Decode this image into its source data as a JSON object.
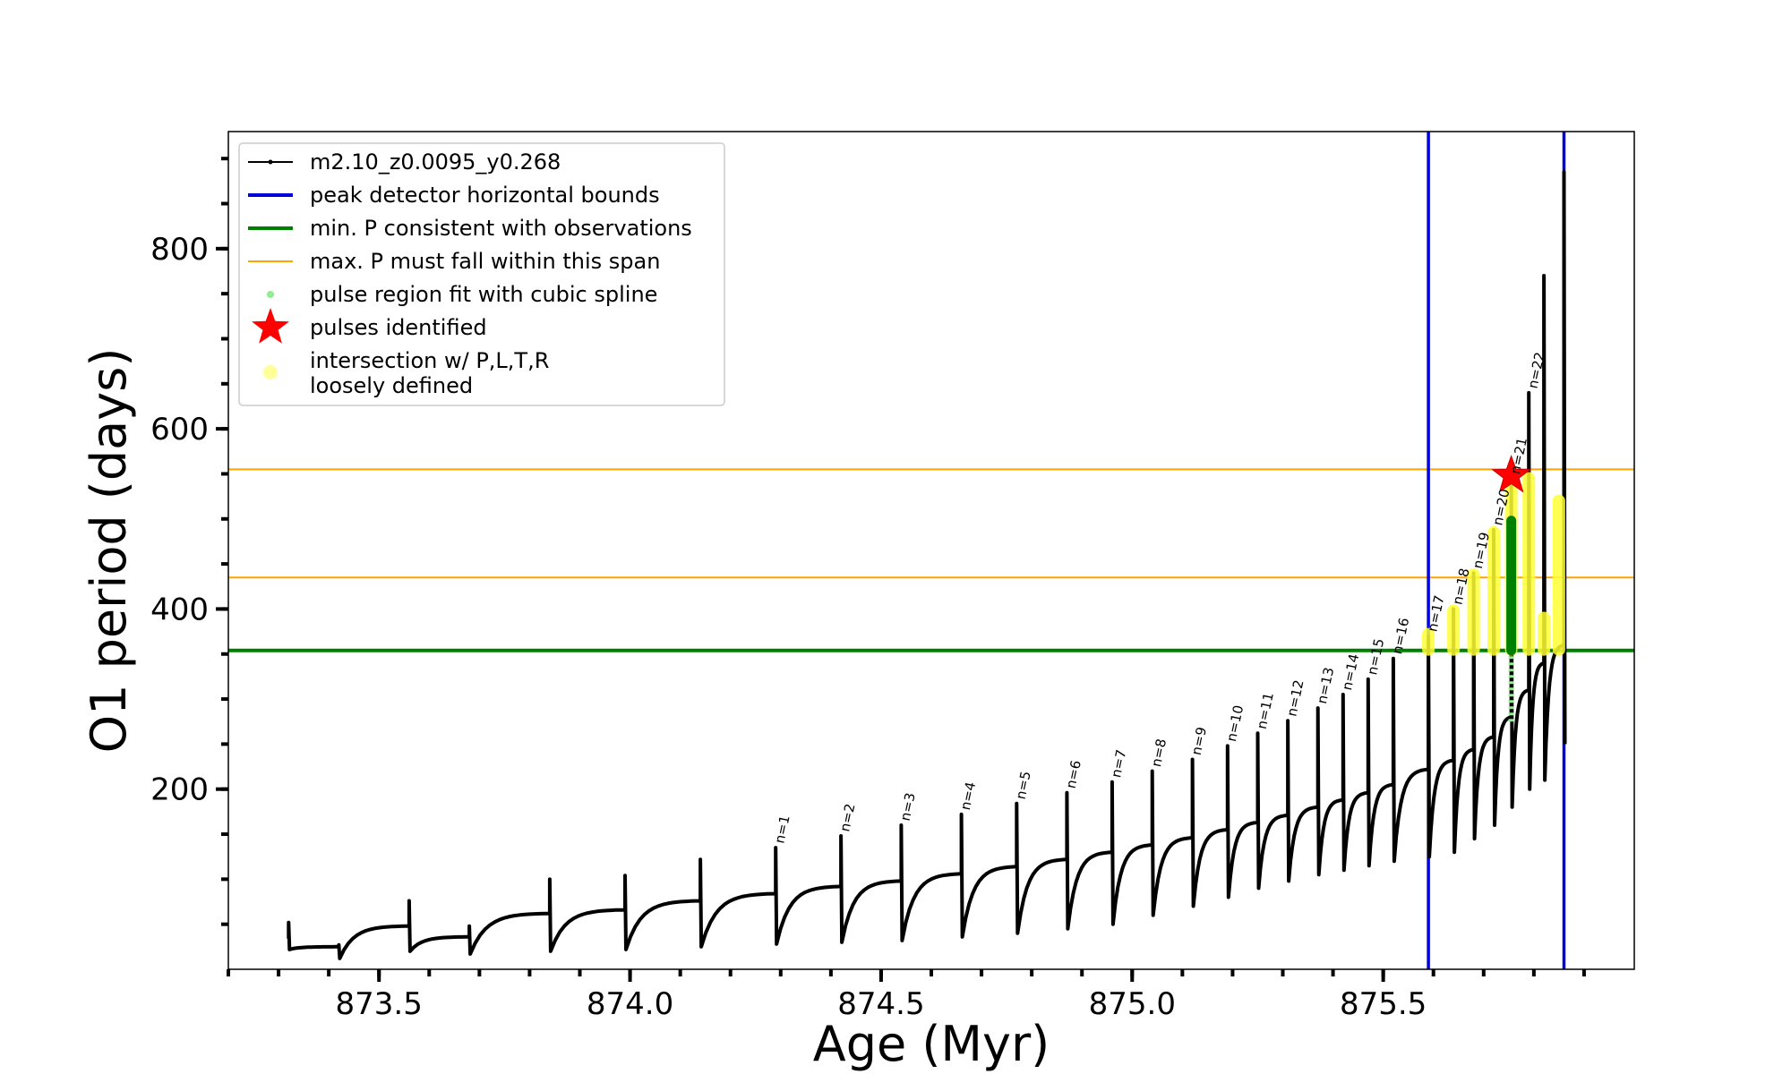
{
  "chart_data": {
    "type": "line",
    "xlabel": "Age (Myr)",
    "ylabel": "O1 period (days)",
    "xlim": [
      873.2,
      876.0
    ],
    "ylim": [
      0,
      930
    ],
    "x_ticks": [
      873.5,
      874.0,
      874.5,
      875.0,
      875.5
    ],
    "x_tick_labels": [
      "873.5",
      "874.0",
      "874.5",
      "875.0",
      "875.5"
    ],
    "y_ticks": [
      200,
      400,
      600,
      800
    ],
    "y_tick_labels": [
      "200",
      "400",
      "600",
      "800"
    ],
    "x_minor_step": 0.1,
    "y_minor_step": 50,
    "legend_position": "top-left",
    "legend": [
      {
        "label": "m2.10_z0.0095_y0.268",
        "kind": "line-dot",
        "color": "#000000"
      },
      {
        "label": "peak detector horizontal bounds",
        "kind": "line",
        "color": "#0000dd"
      },
      {
        "label": "min. P consistent with observations",
        "kind": "line",
        "color": "#008000"
      },
      {
        "label": "max. P must fall within this span",
        "kind": "thin-line",
        "color": "#ffa500"
      },
      {
        "label": "pulse region fit with cubic spline",
        "kind": "dot",
        "color": "#90ee90"
      },
      {
        "label": "pulses identified",
        "kind": "star",
        "color": "#ff0000"
      },
      {
        "label": "intersection w/ P,L,T,R",
        "label2": "loosely defined",
        "kind": "big-dot",
        "color": "#ffff99"
      }
    ],
    "vertical_bounds": [
      875.59,
      875.86
    ],
    "min_P": 354,
    "max_P_span": [
      435,
      555
    ],
    "pulses": [
      {
        "n": "",
        "start": 873.32,
        "pre": 34,
        "peak": 52,
        "dip": 22
      },
      {
        "n": "",
        "start": 873.42,
        "pre": 25,
        "peak": 27,
        "dip": 12
      },
      {
        "n": "",
        "start": 873.56,
        "pre": 48,
        "peak": 76,
        "dip": 20
      },
      {
        "n": "",
        "start": 873.68,
        "pre": 36,
        "peak": 48,
        "dip": 17
      },
      {
        "n": "",
        "start": 873.84,
        "pre": 62,
        "peak": 100,
        "dip": 20
      },
      {
        "n": "",
        "start": 873.99,
        "pre": 66,
        "peak": 104,
        "dip": 22
      },
      {
        "n": "",
        "start": 874.14,
        "pre": 76,
        "peak": 122,
        "dip": 25
      },
      {
        "n": "n=1",
        "start": 874.29,
        "pre": 84,
        "peak": 135,
        "dip": 28
      },
      {
        "n": "n=2",
        "start": 874.42,
        "pre": 92,
        "peak": 148,
        "dip": 30
      },
      {
        "n": "n=3",
        "start": 874.54,
        "pre": 98,
        "peak": 160,
        "dip": 32
      },
      {
        "n": "n=4",
        "start": 874.66,
        "pre": 106,
        "peak": 172,
        "dip": 36
      },
      {
        "n": "n=5",
        "start": 874.77,
        "pre": 114,
        "peak": 184,
        "dip": 40
      },
      {
        "n": "n=6",
        "start": 874.87,
        "pre": 122,
        "peak": 196,
        "dip": 45
      },
      {
        "n": "n=7",
        "start": 874.96,
        "pre": 130,
        "peak": 208,
        "dip": 50
      },
      {
        "n": "n=8",
        "start": 875.04,
        "pre": 138,
        "peak": 220,
        "dip": 60
      },
      {
        "n": "n=9",
        "start": 875.12,
        "pre": 146,
        "peak": 233,
        "dip": 70
      },
      {
        "n": "n=10",
        "start": 875.19,
        "pre": 155,
        "peak": 248,
        "dip": 80
      },
      {
        "n": "n=11",
        "start": 875.25,
        "pre": 163,
        "peak": 262,
        "dip": 90
      },
      {
        "n": "n=12",
        "start": 875.31,
        "pre": 171,
        "peak": 276,
        "dip": 98
      },
      {
        "n": "n=13",
        "start": 875.37,
        "pre": 180,
        "peak": 290,
        "dip": 105
      },
      {
        "n": "n=14",
        "start": 875.42,
        "pre": 188,
        "peak": 305,
        "dip": 110
      },
      {
        "n": "n=15",
        "start": 875.47,
        "pre": 196,
        "peak": 322,
        "dip": 115
      },
      {
        "n": "n=16",
        "start": 875.52,
        "pre": 205,
        "peak": 345,
        "dip": 120
      },
      {
        "n": "n=17",
        "start": 875.59,
        "pre": 222,
        "peak": 370,
        "dip": 125
      },
      {
        "n": "n=18",
        "start": 875.64,
        "pre": 232,
        "peak": 400,
        "dip": 130
      },
      {
        "n": "n=19",
        "start": 875.68,
        "pre": 244,
        "peak": 440,
        "dip": 145
      },
      {
        "n": "n=20",
        "start": 875.72,
        "pre": 258,
        "peak": 488,
        "dip": 160
      },
      {
        "n": "n=21",
        "start": 875.755,
        "pre": 280,
        "peak": 545,
        "dip": 180
      },
      {
        "n": "n=22",
        "start": 875.79,
        "pre": 310,
        "peak": 640,
        "dip": 200
      },
      {
        "n": "",
        "start": 875.82,
        "pre": 340,
        "peak": 770,
        "dip": 210
      },
      {
        "n": "",
        "start": 875.86,
        "pre": 360,
        "peak": 885,
        "dip": 250
      }
    ],
    "pulse_fit": {
      "x": 875.755,
      "from": 275,
      "to": 498
    },
    "pulse_identified": {
      "x": 875.755,
      "y": 548
    },
    "intersections": [
      {
        "x": 875.59,
        "from": 355,
        "to": 372
      },
      {
        "x": 875.64,
        "from": 355,
        "to": 398
      },
      {
        "x": 875.68,
        "from": 355,
        "to": 438
      },
      {
        "x": 875.72,
        "from": 355,
        "to": 485
      },
      {
        "x": 875.755,
        "from": 355,
        "to": 540
      },
      {
        "x": 875.79,
        "from": 355,
        "to": 545
      },
      {
        "x": 875.82,
        "from": 355,
        "to": 390
      },
      {
        "x": 875.85,
        "from": 355,
        "to": 520
      }
    ]
  }
}
